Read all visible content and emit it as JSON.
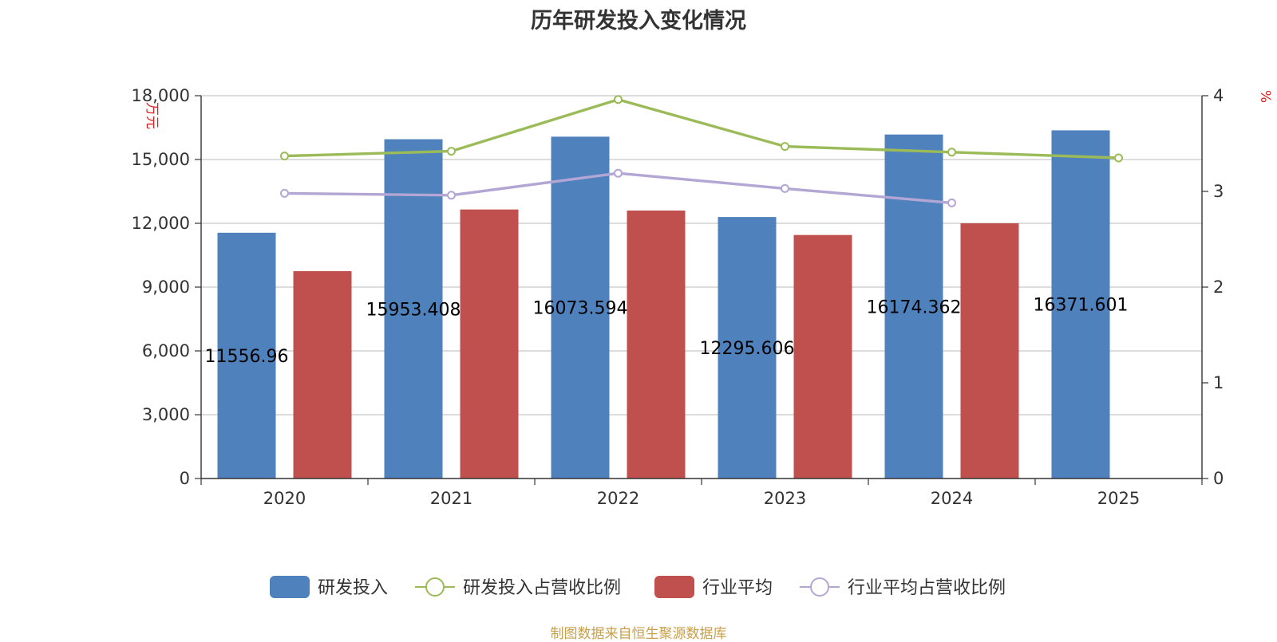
{
  "title": "历年研发投入变化情况",
  "source": "制图数据来自恒生聚源数据库",
  "chart_data": {
    "type": "bar",
    "categories": [
      "2020",
      "2021",
      "2022",
      "2023",
      "2024",
      "2025"
    ],
    "y_left": {
      "unit": "万元",
      "ticks": [
        "0",
        "3,000",
        "6,000",
        "9,000",
        "12,000",
        "15,000",
        "18,000"
      ],
      "range": [
        0,
        18000
      ]
    },
    "y_right": {
      "unit": "%",
      "ticks": [
        "0",
        "1",
        "2",
        "3",
        "4"
      ],
      "range": [
        0,
        4
      ]
    },
    "grid": true,
    "legend_position": "bottom",
    "series": [
      {
        "name": "研发投入",
        "kind": "bar",
        "axis": "left",
        "color": "#4f81bd",
        "values": [
          11556.96,
          15953.408,
          16073.594,
          12295.606,
          16174.362,
          16371.601
        ],
        "labels": [
          "11556.96",
          "15953.408",
          "16073.594",
          "12295.606",
          "16174.362",
          "16371.601"
        ]
      },
      {
        "name": "研发投入占营收比例",
        "kind": "line",
        "axis": "right",
        "color": "#9bbb59",
        "values": [
          3.37,
          3.42,
          3.96,
          3.47,
          3.41,
          3.35
        ]
      },
      {
        "name": "行业平均",
        "kind": "bar",
        "axis": "left",
        "color": "#c0504d",
        "values": [
          9750,
          12650,
          12600,
          11450,
          12000,
          null
        ]
      },
      {
        "name": "行业平均占营收比例",
        "kind": "line",
        "axis": "right",
        "color": "#b3a6d4",
        "values": [
          2.98,
          2.96,
          3.19,
          3.03,
          2.88,
          null
        ]
      }
    ]
  }
}
